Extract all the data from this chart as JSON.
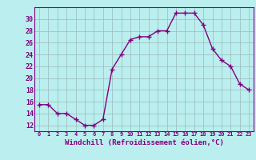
{
  "x": [
    0,
    1,
    2,
    3,
    4,
    5,
    6,
    7,
    8,
    9,
    10,
    11,
    12,
    13,
    14,
    15,
    16,
    17,
    18,
    19,
    20,
    21,
    22,
    23
  ],
  "y": [
    15.5,
    15.5,
    14.0,
    14.0,
    13.0,
    12.0,
    12.0,
    13.0,
    21.5,
    24.0,
    26.5,
    27.0,
    27.0,
    28.0,
    28.0,
    31.0,
    31.0,
    31.0,
    29.0,
    25.0,
    23.0,
    22.0,
    19.0,
    18.0
  ],
  "line_color": "#800080",
  "marker": "+",
  "marker_size": 4,
  "linewidth": 1.0,
  "xlim": [
    -0.5,
    23.5
  ],
  "ylim": [
    11,
    32
  ],
  "yticks": [
    12,
    14,
    16,
    18,
    20,
    22,
    24,
    26,
    28,
    30
  ],
  "xticks": [
    0,
    1,
    2,
    3,
    4,
    5,
    6,
    7,
    8,
    9,
    10,
    11,
    12,
    13,
    14,
    15,
    16,
    17,
    18,
    19,
    20,
    21,
    22,
    23
  ],
  "xlabel": "Windchill (Refroidissement éolien,°C)",
  "bg_color": "#bbeeee",
  "grid_color": "#99bbbb",
  "text_color": "#800080",
  "spine_color": "#800080"
}
